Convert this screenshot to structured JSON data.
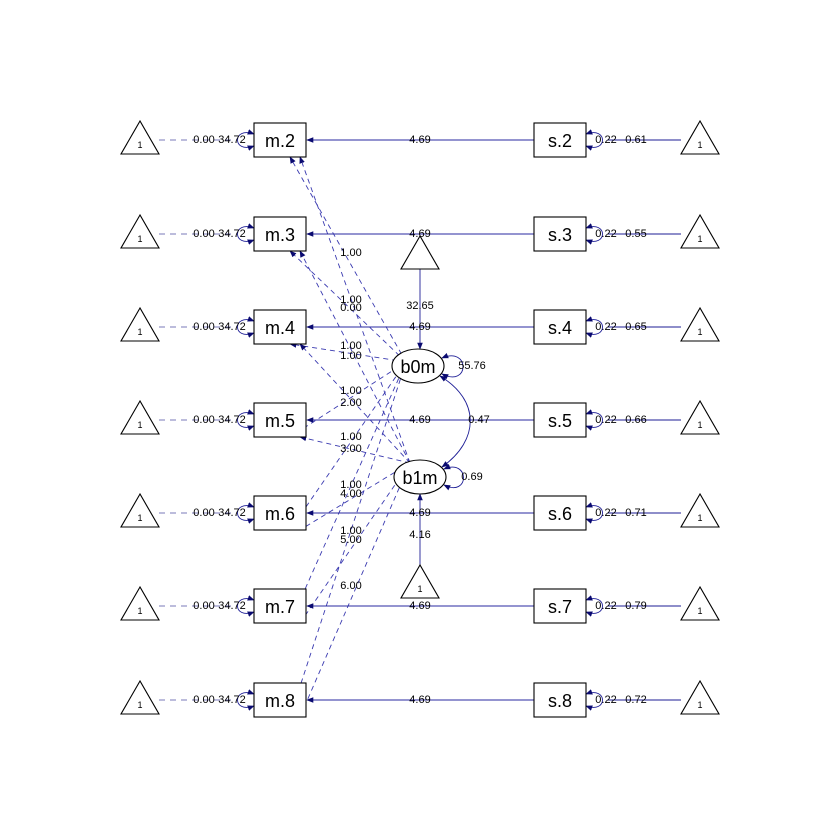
{
  "colors": {
    "edge": "#1e1e96",
    "edge_regression": "#2a2aa0",
    "edge_dashed_loading": "#3a3ab0",
    "triangle_dash": "#7a7ab8",
    "node_stroke": "#000000",
    "background": "#ffffff"
  },
  "latents": [
    {
      "id": "b0m",
      "label": "b0m"
    },
    {
      "id": "b1m",
      "label": "b1m"
    }
  ],
  "intercept_triangle_label": "1",
  "rows": [
    {
      "m": "m.2",
      "s": "s.2",
      "m_one": "1",
      "s_one": "1",
      "m_mean": "0.00",
      "m_var": "34.72",
      "s_var": "0.22",
      "s_mean": "0.61",
      "reg": "4.69",
      "b0_load": "1.00",
      "b1_load": "0.00"
    },
    {
      "m": "m.3",
      "s": "s.3",
      "m_one": "1",
      "s_one": "1",
      "m_mean": "0.00",
      "m_var": "34.72",
      "s_var": "0.22",
      "s_mean": "0.55",
      "reg": "4.69",
      "b0_load": "1.00",
      "b1_load": "1.00"
    },
    {
      "m": "m.4",
      "s": "s.4",
      "m_one": "1",
      "s_one": "1",
      "m_mean": "0.00",
      "m_var": "34.72",
      "s_var": "0.22",
      "s_mean": "0.65",
      "reg": "4.69",
      "b0_load": "1.00",
      "b1_load": "2.00"
    },
    {
      "m": "m.5",
      "s": "s.5",
      "m_one": "1",
      "s_one": "1",
      "m_mean": "0.00",
      "m_var": "34.72",
      "s_var": "0.22",
      "s_mean": "0.66",
      "reg": "4.69",
      "b0_load": "1.00",
      "b1_load": "3.00"
    },
    {
      "m": "m.6",
      "s": "s.6",
      "m_one": "1",
      "s_one": "1",
      "m_mean": "0.00",
      "m_var": "34.72",
      "s_var": "0.22",
      "s_mean": "0.71",
      "reg": "4.69",
      "b0_load": "1.00",
      "b1_load": "4.00"
    },
    {
      "m": "m.7",
      "s": "s.7",
      "m_one": "1",
      "s_one": "1",
      "m_mean": "0.00",
      "m_var": "34.72",
      "s_var": "0.22",
      "s_mean": "0.79",
      "reg": "4.69",
      "b0_load": "1.00",
      "b1_load": "5.00"
    },
    {
      "m": "m.8",
      "s": "s.8",
      "m_one": "1",
      "s_one": "1",
      "m_mean": "0.00",
      "m_var": "34.72",
      "s_var": "0.22",
      "s_mean": "0.72",
      "reg": "4.69",
      "b0_load": "1.00",
      "b1_load": "6.00"
    }
  ],
  "b0_mean": "32.65",
  "b0_var": "55.76",
  "b1_mean": "4.16",
  "b1_var": "0.69",
  "b0_b1_cov": "0.47",
  "latent_one_top": "",
  "latent_one_bottom": "1"
}
